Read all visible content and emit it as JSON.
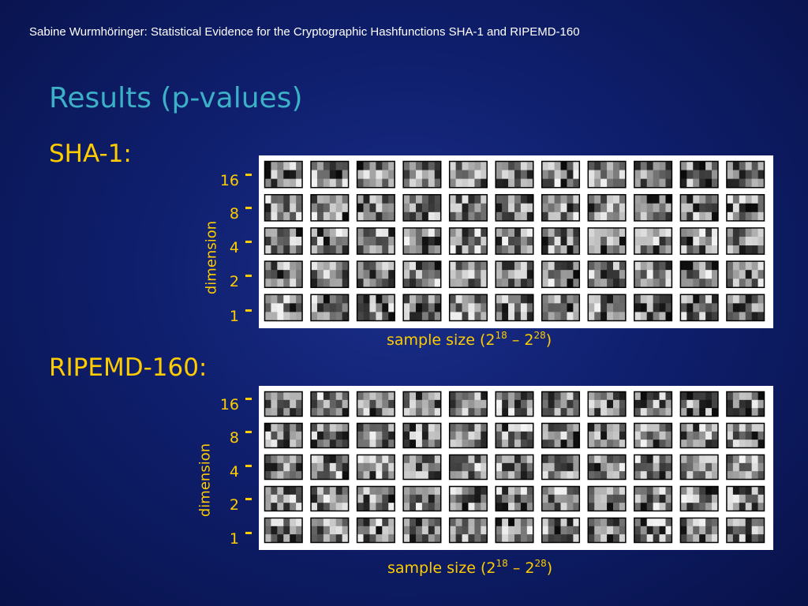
{
  "header": "Sabine Wurmhöringer: Statistical Evidence for the Cryptographic Hashfunctions SHA-1 and RIPEMD-160",
  "title": "Results (p-values)",
  "colors": {
    "title": "#3bb0c6",
    "accent": "#ffcc00",
    "background": "#0f1f6e",
    "text": "#ffffff"
  },
  "sections": [
    {
      "label": "SHA-1:",
      "y_axis_label": "dimension",
      "y_ticks": [
        "16",
        "8",
        "4",
        "2",
        "1"
      ],
      "x_axis": {
        "prefix": "sample size (2",
        "exp1": "18",
        "mid": " – 2",
        "exp2": "28",
        "suffix": ")"
      }
    },
    {
      "label": "RIPEMD-160:",
      "y_axis_label": "dimension",
      "y_ticks": [
        "16",
        "8",
        "4",
        "2",
        "1"
      ],
      "x_axis": {
        "prefix": "sample size (2",
        "exp1": "18",
        "mid": " – 2",
        "exp2": "28",
        "suffix": ")"
      }
    }
  ],
  "chart_data": [
    {
      "type": "heatmap",
      "title": "SHA-1",
      "ylabel": "dimension",
      "xlabel": "sample size (2^18 – 2^28)",
      "rows": [
        "16",
        "8",
        "4",
        "2",
        "1"
      ],
      "columns": 11
    },
    {
      "type": "heatmap",
      "title": "RIPEMD-160",
      "ylabel": "dimension",
      "xlabel": "sample size (2^18 – 2^28)",
      "rows": [
        "16",
        "8",
        "4",
        "2",
        "1"
      ],
      "columns": 11
    }
  ]
}
